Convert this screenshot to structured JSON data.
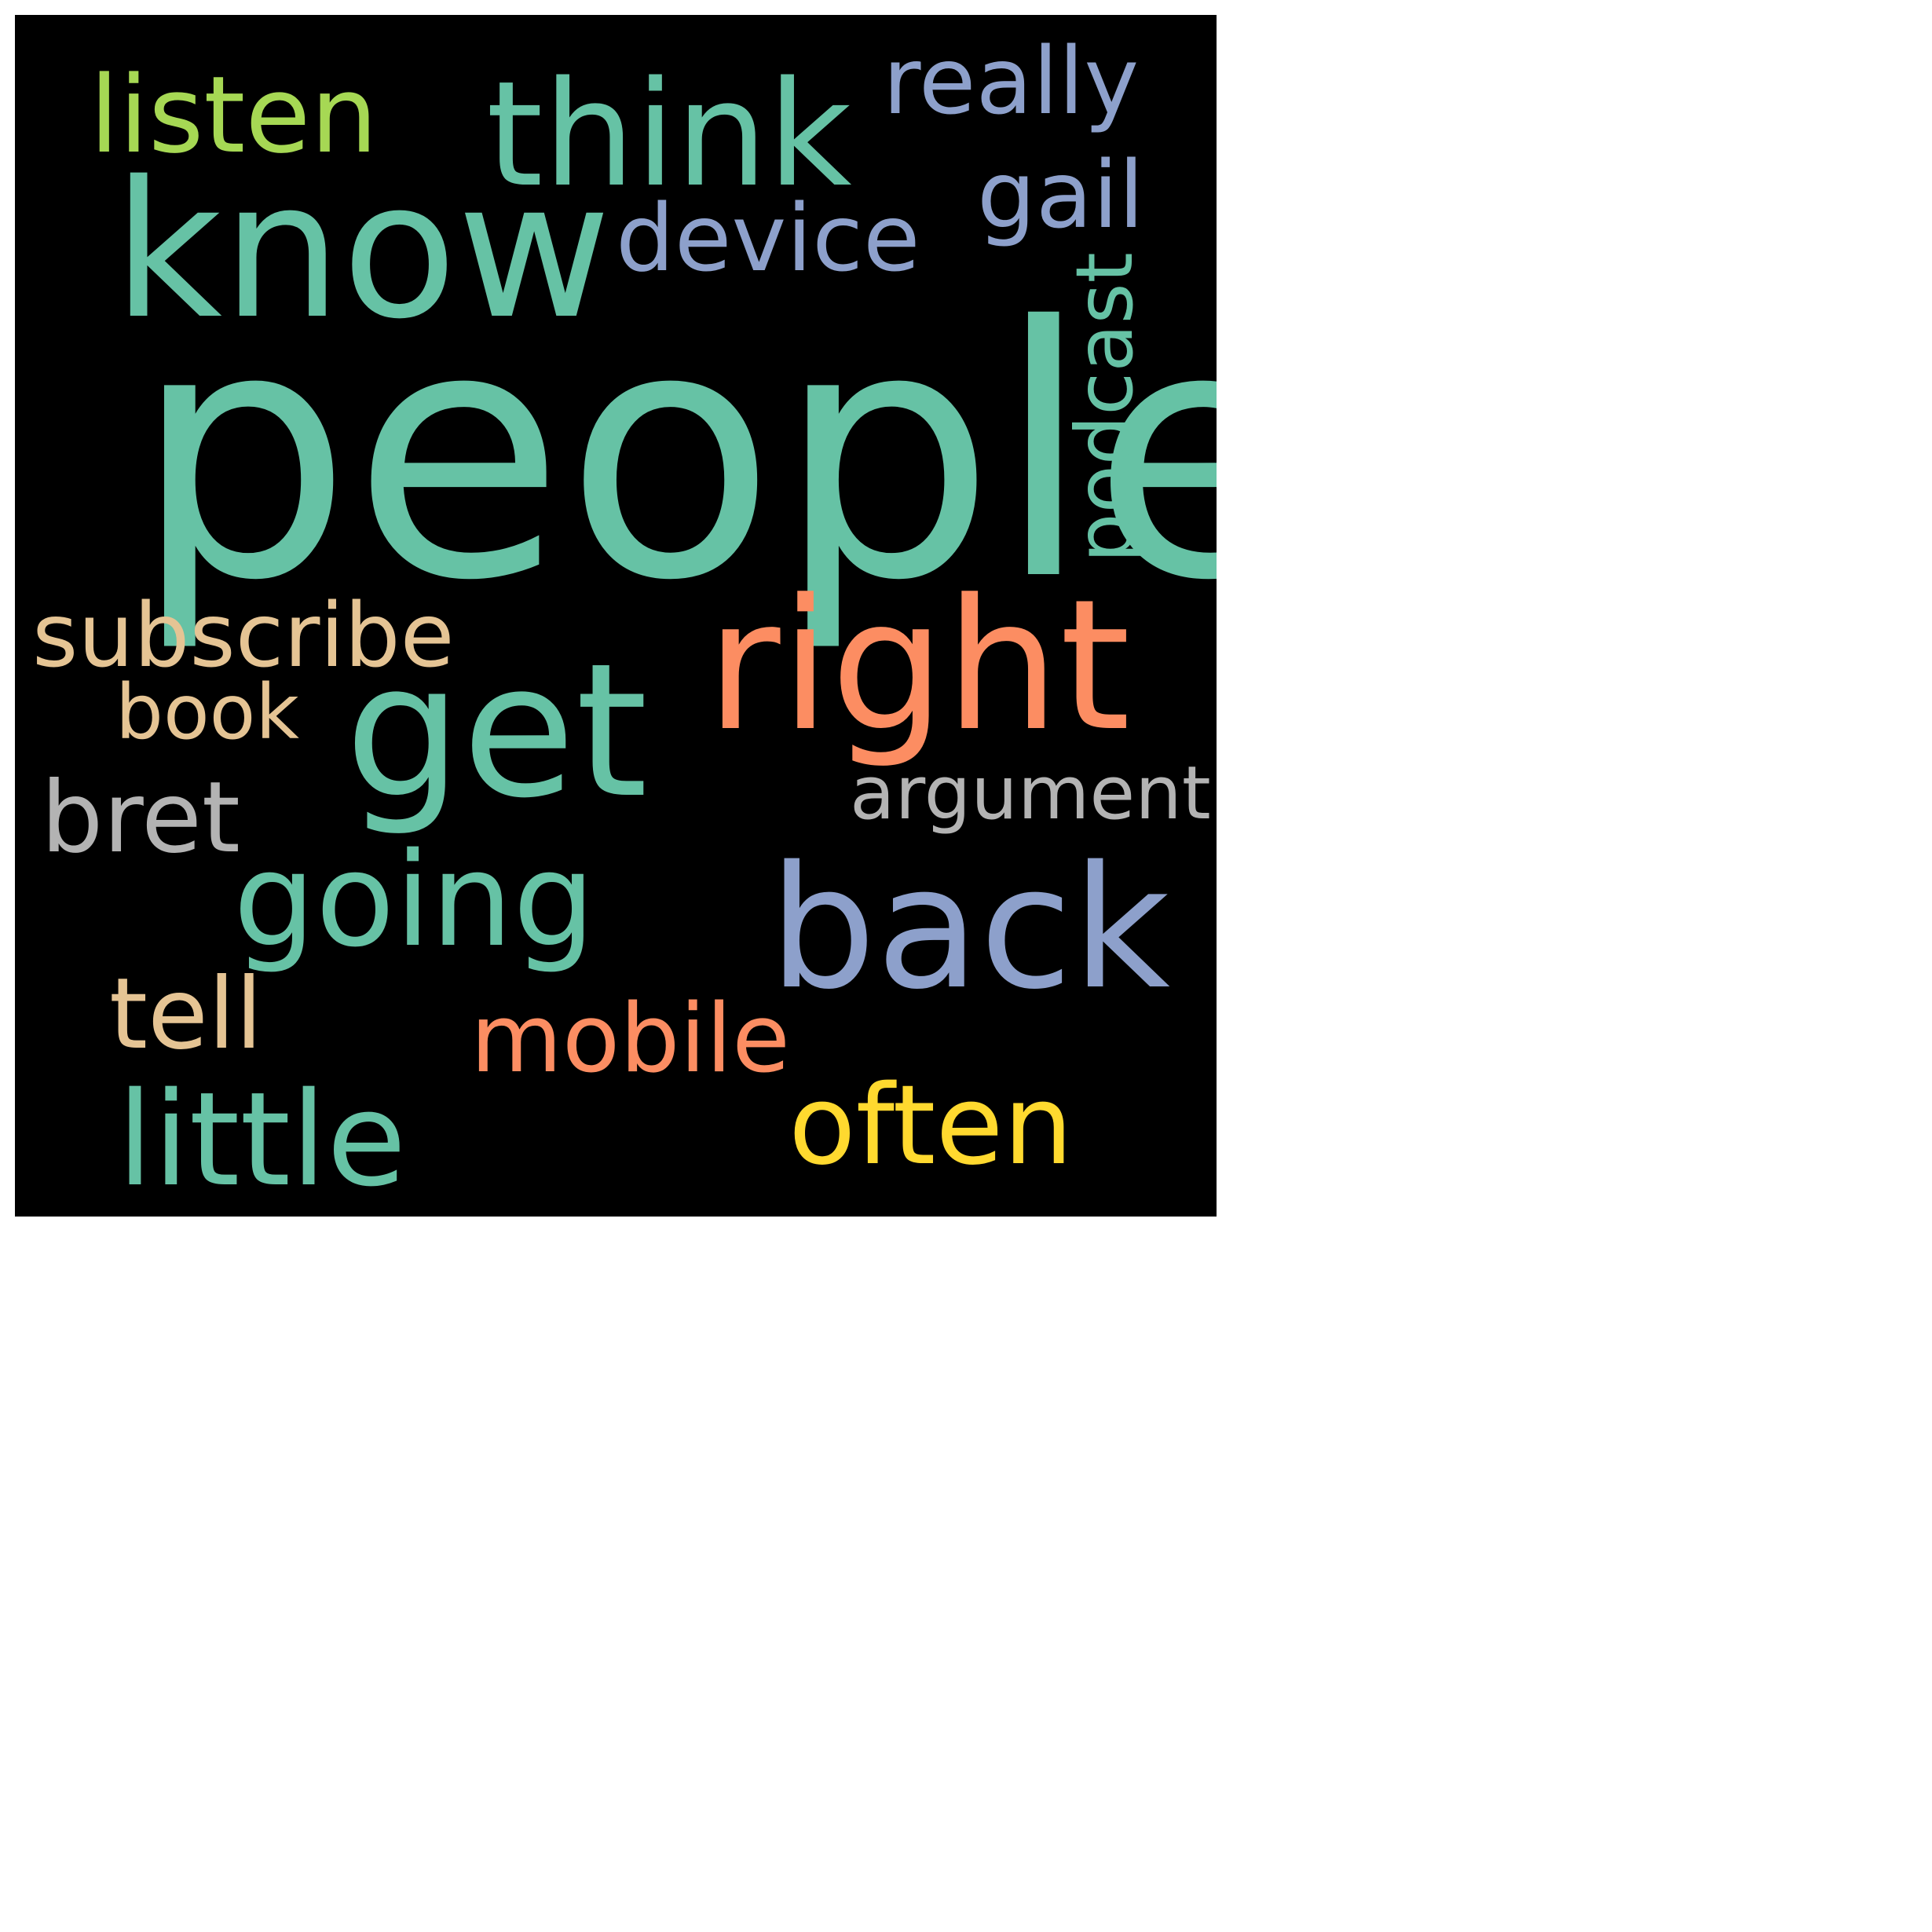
{
  "palette": {
    "green": "#66c2a5",
    "orange": "#fc8d62",
    "blue": "#8da0cb",
    "lime": "#a6d854",
    "yellow": "#ffd92f",
    "tan": "#e5c494",
    "gray": "#b3b3b3",
    "background": "#000000"
  },
  "words": [
    {
      "text": "people",
      "color": "#66c2a5"
    },
    {
      "text": "know",
      "color": "#66c2a5"
    },
    {
      "text": "think",
      "color": "#66c2a5"
    },
    {
      "text": "listen",
      "color": "#a6d854"
    },
    {
      "text": "really",
      "color": "#8da0cb"
    },
    {
      "text": "device",
      "color": "#8da0cb"
    },
    {
      "text": "gail",
      "color": "#8da0cb"
    },
    {
      "text": "podcast",
      "color": "#66c2a5"
    },
    {
      "text": "right",
      "color": "#fc8d62"
    },
    {
      "text": "get",
      "color": "#66c2a5"
    },
    {
      "text": "subscribe",
      "color": "#e5c494"
    },
    {
      "text": "book",
      "color": "#e5c494"
    },
    {
      "text": "bret",
      "color": "#b3b3b3"
    },
    {
      "text": "argument",
      "color": "#b3b3b3"
    },
    {
      "text": "going",
      "color": "#66c2a5"
    },
    {
      "text": "back",
      "color": "#8da0cb"
    },
    {
      "text": "tell",
      "color": "#e5c494"
    },
    {
      "text": "mobile",
      "color": "#fc8d62"
    },
    {
      "text": "little",
      "color": "#66c2a5"
    },
    {
      "text": "often",
      "color": "#ffd92f"
    }
  ]
}
